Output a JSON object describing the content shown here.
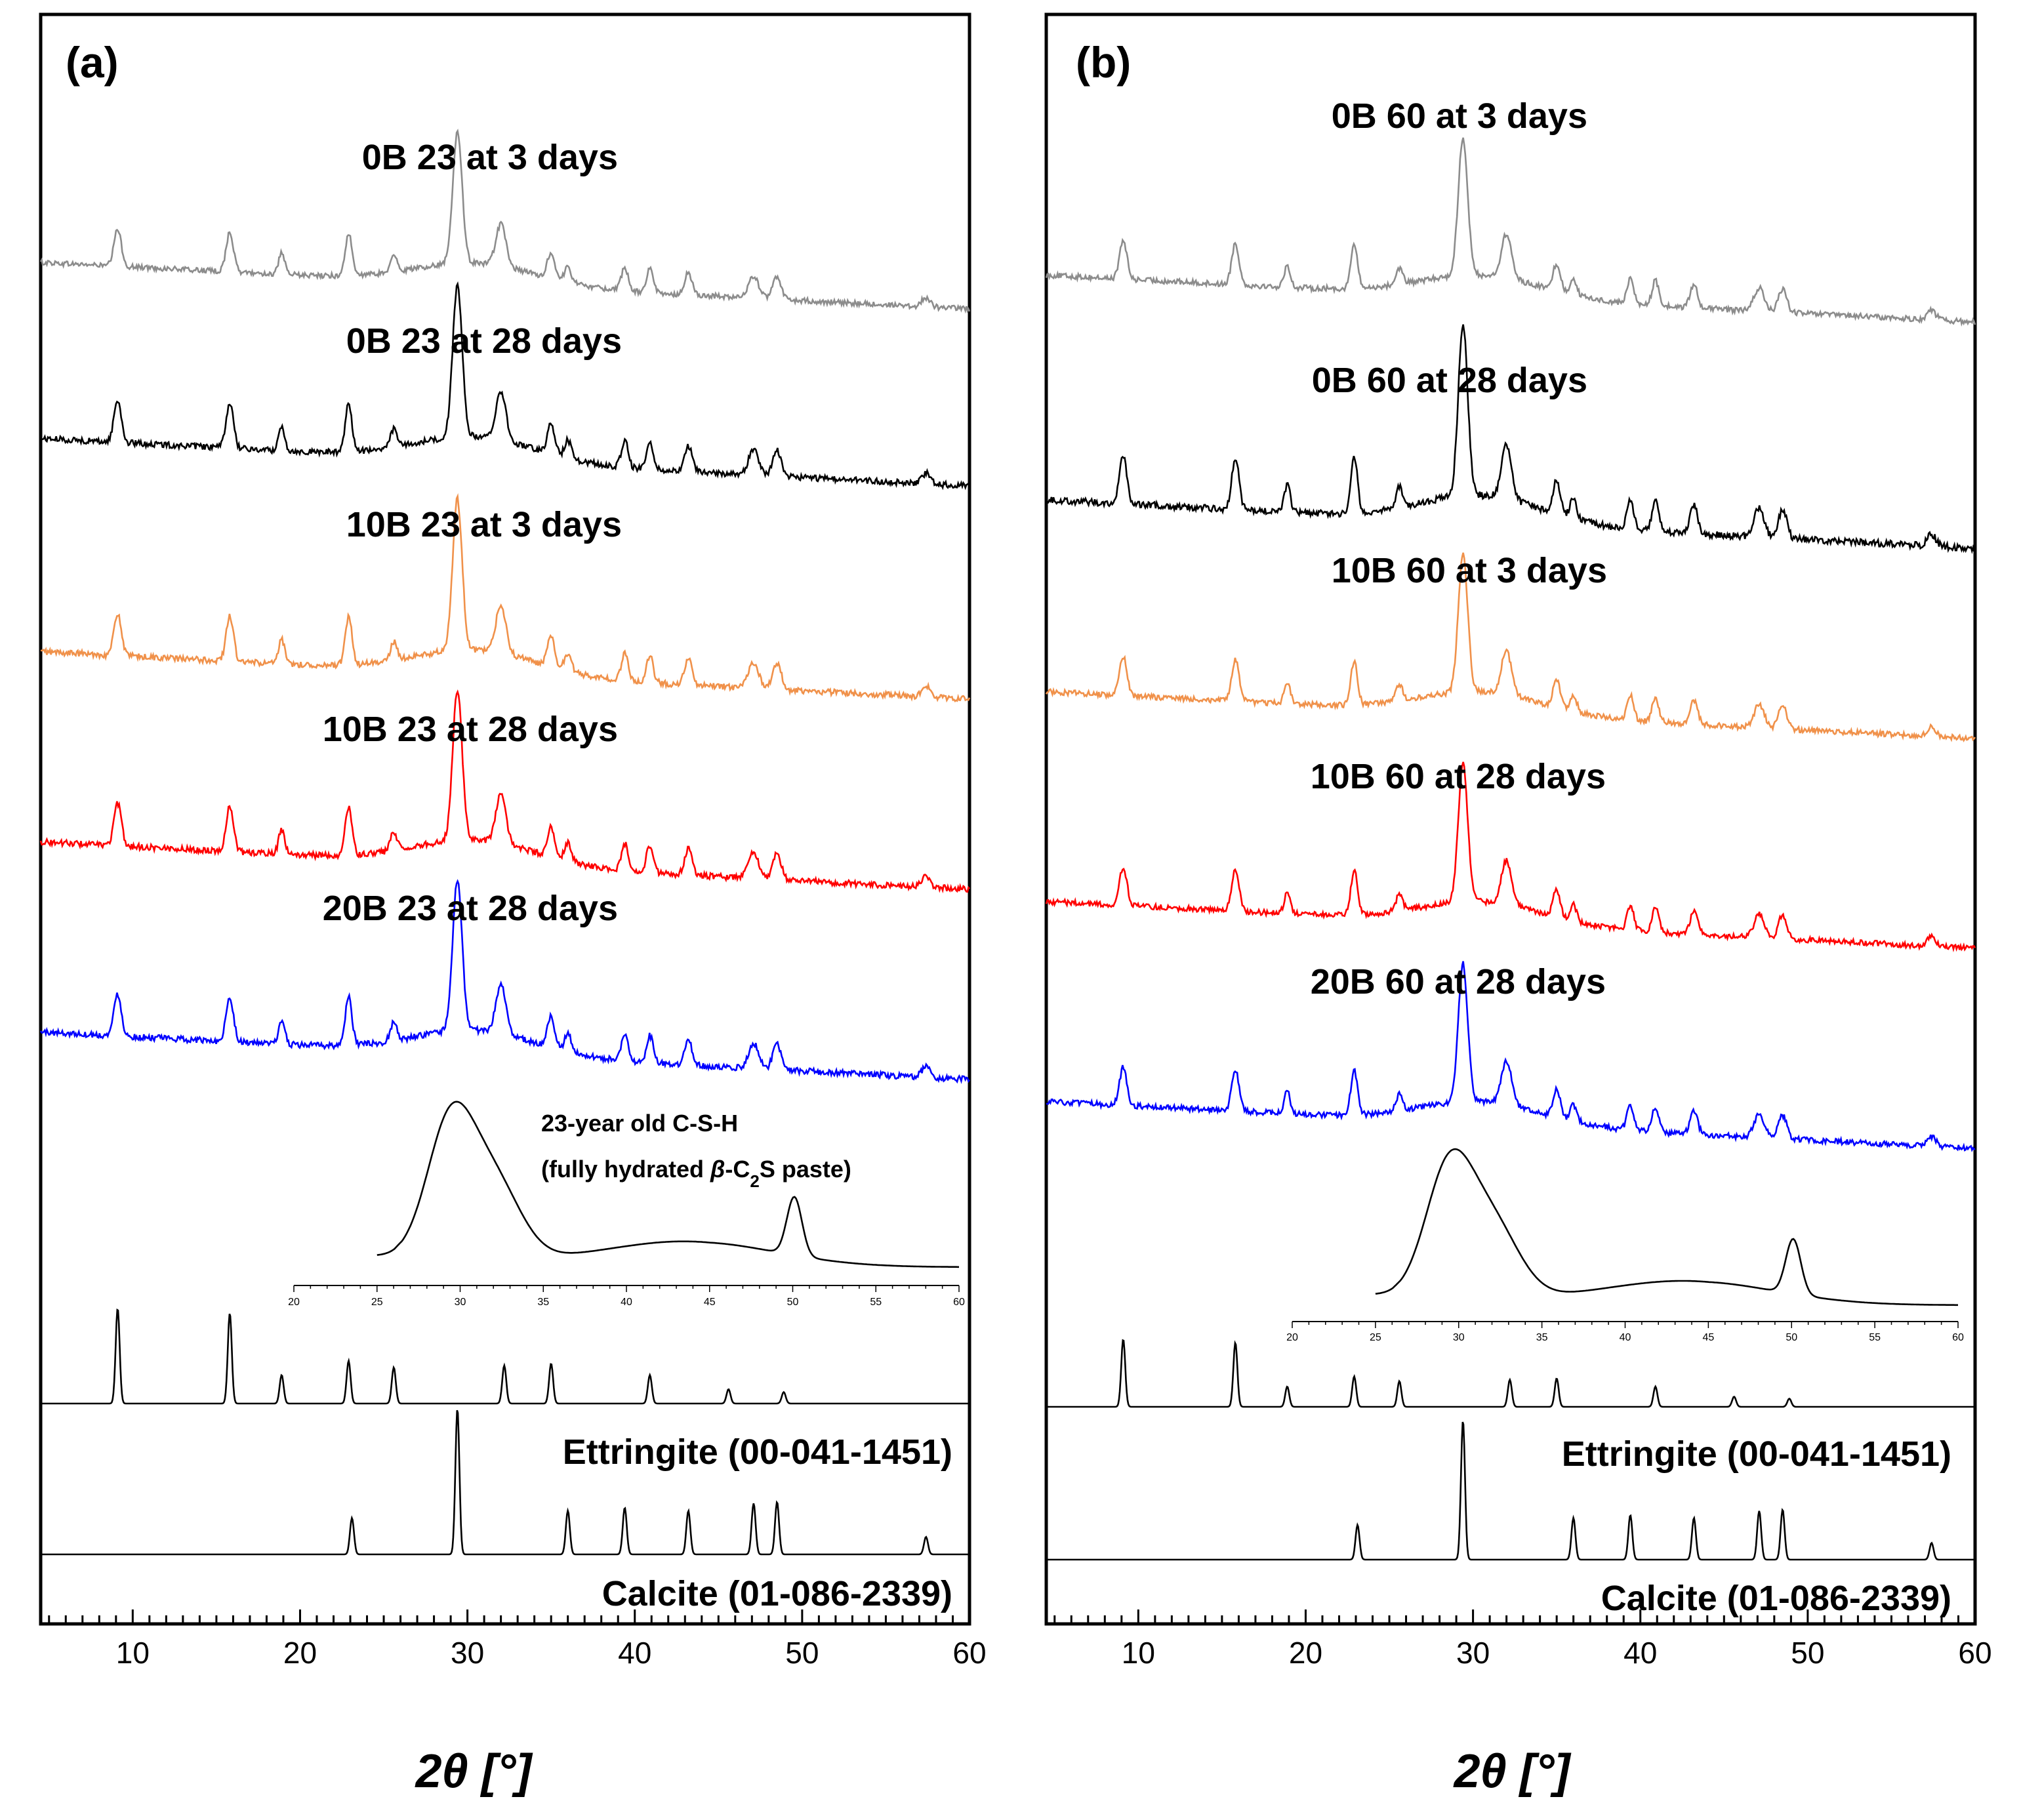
{
  "chart_data": [
    {
      "type": "line",
      "panel": "(a)",
      "xlabel": "2θ [°]",
      "xlim": [
        4.5,
        60
      ],
      "x_ticks": [
        10,
        20,
        30,
        40,
        50,
        60
      ],
      "y_ticks_shown": false,
      "series": [
        {
          "name": "0B 23 at 3 days",
          "color": "#8c8c8c"
        },
        {
          "name": "0B 23 at 28 days",
          "color": "#000000"
        },
        {
          "name": "10B 23 at 3 days",
          "color": "#f0914a"
        },
        {
          "name": "10B 23 at 28 days",
          "color": "#ff0000"
        },
        {
          "name": "20B 23 at 28 days",
          "color": "#0000ff"
        }
      ],
      "inset": {
        "label_line1": "23-year old C-S-H",
        "label_line2_pre": "(fully hydrated ",
        "label_beta": "β",
        "label_c": "-C",
        "label_sub": "2",
        "label_post": "S paste)",
        "x_ticks": [
          20,
          25,
          30,
          35,
          40,
          45,
          50,
          55,
          60
        ],
        "peaks": [
          29.4,
          32.0,
          50.1
        ]
      },
      "references": [
        {
          "name": "Ettringite (00-041-1451)",
          "peaks_2theta": [
            9.1,
            15.8,
            18.9,
            22.9,
            25.6,
            32.2,
            35.0,
            40.9,
            45.6,
            48.9
          ]
        },
        {
          "name": "Calcite (01-086-2339)",
          "peaks_2theta": [
            23.1,
            29.4,
            36.0,
            39.4,
            43.2,
            47.1,
            48.5,
            57.4
          ]
        }
      ]
    },
    {
      "type": "line",
      "panel": "(b)",
      "xlabel": "2θ [°]",
      "xlim": [
        4.5,
        60
      ],
      "x_ticks": [
        10,
        20,
        30,
        40,
        50,
        60
      ],
      "y_ticks_shown": false,
      "series": [
        {
          "name": "0B 60 at 3 days",
          "color": "#8c8c8c"
        },
        {
          "name": "0B 60 at 28 days",
          "color": "#000000"
        },
        {
          "name": "10B 60 at 3 days",
          "color": "#f0914a"
        },
        {
          "name": "10B 60 at 28 days",
          "color": "#ff0000"
        },
        {
          "name": "20B 60 at 28 days",
          "color": "#0000ff"
        }
      ],
      "inset": {
        "x_ticks": [
          20,
          25,
          30,
          35,
          40,
          45,
          50,
          55,
          60
        ],
        "peaks": [
          29.4,
          32.0,
          50.1
        ]
      },
      "references": [
        {
          "name": "Ettringite (00-041-1451)",
          "peaks_2theta": [
            9.1,
            15.8,
            18.9,
            22.9,
            25.6,
            32.2,
            35.0,
            40.9,
            45.6,
            48.9
          ]
        },
        {
          "name": "Calcite (01-086-2339)",
          "peaks_2theta": [
            23.1,
            29.4,
            36.0,
            39.4,
            43.2,
            47.1,
            48.5,
            57.4
          ]
        }
      ]
    }
  ]
}
